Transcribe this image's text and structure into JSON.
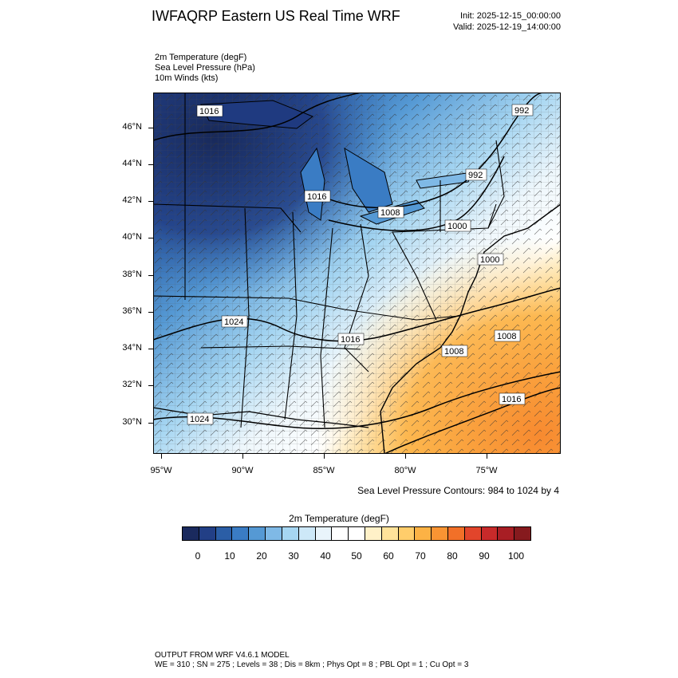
{
  "header": {
    "title": "IWFAQRP Eastern US Real Time WRF",
    "init": "Init: 2025-12-15_00:00:00",
    "valid": "Valid: 2025-12-19_14:00:00"
  },
  "variables": [
    "2m Temperature   (degF)",
    "Sea Level Pressure   (hPa)",
    "10m Winds   (kts)"
  ],
  "axes": {
    "lat_labels": [
      "46°N",
      "44°N",
      "42°N",
      "40°N",
      "38°N",
      "36°N",
      "34°N",
      "32°N",
      "30°N"
    ],
    "lon_labels": [
      "95°W",
      "90°W",
      "85°W",
      "80°W",
      "75°W"
    ]
  },
  "slp_contour_labels": [
    "1016",
    "992",
    "992",
    "1016",
    "1008",
    "1000",
    "1000",
    "1024",
    "1016",
    "1008",
    "1008",
    "1016",
    "1024"
  ],
  "slp_note": "Sea Level Pressure Contours: 984 to 1024 by 4",
  "colorbar": {
    "title": "2m Temperature  (degF)",
    "labels": [
      "0",
      "10",
      "20",
      "30",
      "40",
      "50",
      "60",
      "70",
      "80",
      "90",
      "100"
    ],
    "colors": [
      "#1a2a5e",
      "#223f86",
      "#2b5ea6",
      "#3a7cc4",
      "#5599d4",
      "#7fb9e6",
      "#a6d6f2",
      "#cde8f8",
      "#e9f4fb",
      "#ffffff",
      "#ffffff",
      "#fff1c8",
      "#ffe39a",
      "#ffcd6b",
      "#fcb245",
      "#f99433",
      "#f27028",
      "#e2452b",
      "#c82a2a",
      "#a81e24",
      "#861a1e"
    ]
  },
  "footer": {
    "line1": "OUTPUT FROM WRF V4.6.1 MODEL",
    "line2": "WE = 310 ; SN = 275 ; Levels = 38 ; Dis = 8km ; Phys Opt = 8 ; PBL Opt = 1 ; Cu Opt = 3"
  }
}
